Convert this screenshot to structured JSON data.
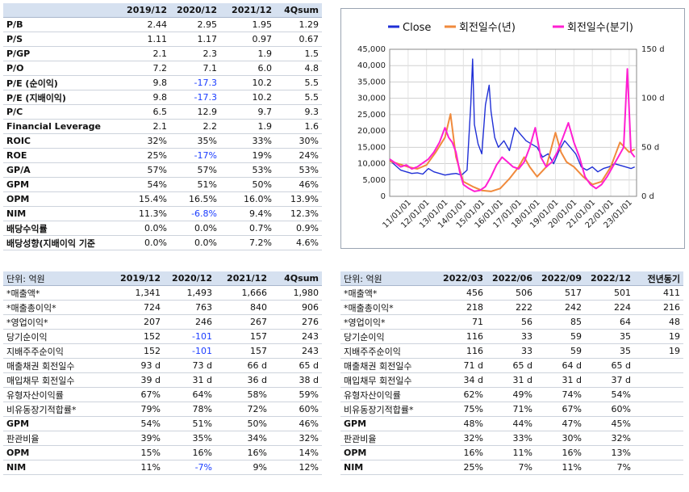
{
  "valuation_table": {
    "headers": [
      "",
      "2019/12",
      "2020/12",
      "2021/12",
      "4Qsum"
    ],
    "rows": [
      {
        "label": "P/B",
        "values": [
          "2.44",
          "2.95",
          "1.95",
          "1.29"
        ],
        "neg": [
          false,
          false,
          false,
          false
        ]
      },
      {
        "label": "P/S",
        "values": [
          "1.11",
          "1.17",
          "0.97",
          "0.67"
        ],
        "neg": [
          false,
          false,
          false,
          false
        ]
      },
      {
        "label": "P/GP",
        "values": [
          "2.1",
          "2.3",
          "1.9",
          "1.5"
        ],
        "neg": [
          false,
          false,
          false,
          false
        ]
      },
      {
        "label": "P/O",
        "values": [
          "7.2",
          "7.1",
          "6.0",
          "4.8"
        ],
        "neg": [
          false,
          false,
          false,
          false
        ]
      },
      {
        "label": "P/E (순이익)",
        "values": [
          "9.8",
          "-17.3",
          "10.2",
          "5.5"
        ],
        "neg": [
          false,
          true,
          false,
          false
        ]
      },
      {
        "label": "P/E (지배이익)",
        "values": [
          "9.8",
          "-17.3",
          "10.2",
          "5.5"
        ],
        "neg": [
          false,
          true,
          false,
          false
        ]
      },
      {
        "label": "P/C",
        "values": [
          "6.5",
          "12.9",
          "9.7",
          "9.3"
        ],
        "neg": [
          false,
          false,
          false,
          false
        ]
      },
      {
        "label": "Financial Leverage",
        "values": [
          "2.1",
          "2.2",
          "1.9",
          "1.6"
        ],
        "neg": [
          false,
          false,
          false,
          false
        ]
      },
      {
        "label": "ROIC",
        "values": [
          "32%",
          "35%",
          "33%",
          "30%"
        ],
        "neg": [
          false,
          false,
          false,
          false
        ]
      },
      {
        "label": "ROE",
        "values": [
          "25%",
          "-17%",
          "19%",
          "24%"
        ],
        "neg": [
          false,
          true,
          false,
          false
        ]
      },
      {
        "label": "GP/A",
        "values": [
          "57%",
          "57%",
          "53%",
          "53%"
        ],
        "neg": [
          false,
          false,
          false,
          false
        ]
      },
      {
        "label": "GPM",
        "values": [
          "54%",
          "51%",
          "50%",
          "46%"
        ],
        "neg": [
          false,
          false,
          false,
          false
        ]
      },
      {
        "label": "OPM",
        "values": [
          "15.4%",
          "16.5%",
          "16.0%",
          "13.9%"
        ],
        "neg": [
          false,
          false,
          false,
          false
        ]
      },
      {
        "label": "NIM",
        "values": [
          "11.3%",
          "-6.8%",
          "9.4%",
          "12.3%"
        ],
        "neg": [
          false,
          true,
          false,
          false
        ]
      },
      {
        "label": "배당수익률",
        "values": [
          "0.0%",
          "0.0%",
          "0.7%",
          "0.9%"
        ],
        "neg": [
          false,
          false,
          false,
          false
        ]
      },
      {
        "label": "배당성향(지배이익 기준",
        "values": [
          "0.0%",
          "0.0%",
          "7.2%",
          "4.6%"
        ],
        "neg": [
          false,
          false,
          false,
          false
        ]
      }
    ]
  },
  "annual_table": {
    "headers": [
      "단위: 억원",
      "2019/12",
      "2020/12",
      "2021/12",
      "4Qsum"
    ],
    "rows": [
      {
        "label": "*매출액*",
        "values": [
          "1,341",
          "1,493",
          "1,666",
          "1,980"
        ],
        "neg": [
          false,
          false,
          false,
          false
        ]
      },
      {
        "label": "*매출총이익*",
        "values": [
          "724",
          "763",
          "840",
          "906"
        ],
        "neg": [
          false,
          false,
          false,
          false
        ]
      },
      {
        "label": "*영업이익*",
        "values": [
          "207",
          "246",
          "267",
          "276"
        ],
        "neg": [
          false,
          false,
          false,
          false
        ]
      },
      {
        "label": "당기순이익",
        "values": [
          "152",
          "-101",
          "157",
          "243"
        ],
        "neg": [
          false,
          true,
          false,
          false
        ]
      },
      {
        "label": "지배주주순이익",
        "values": [
          "152",
          "-101",
          "157",
          "243"
        ],
        "neg": [
          false,
          true,
          false,
          false
        ]
      },
      {
        "label": "매출채권 회전일수",
        "values": [
          "93 d",
          "73 d",
          "66 d",
          "65 d"
        ],
        "neg": [
          false,
          false,
          false,
          false
        ]
      },
      {
        "label": "매입채무 회전일수",
        "values": [
          "39 d",
          "31 d",
          "36 d",
          "38 d"
        ],
        "neg": [
          false,
          false,
          false,
          false
        ]
      },
      {
        "label": "유형자산이익률",
        "values": [
          "67%",
          "64%",
          "58%",
          "59%"
        ],
        "neg": [
          false,
          false,
          false,
          false
        ]
      },
      {
        "label": "비유동장기적합률*",
        "values": [
          "79%",
          "78%",
          "72%",
          "60%"
        ],
        "neg": [
          false,
          false,
          false,
          false
        ]
      },
      {
        "label": "GPM",
        "values": [
          "54%",
          "51%",
          "50%",
          "46%"
        ],
        "neg": [
          false,
          false,
          false,
          false
        ]
      },
      {
        "label": "판관비율",
        "values": [
          "39%",
          "35%",
          "34%",
          "32%"
        ],
        "neg": [
          false,
          false,
          false,
          false
        ]
      },
      {
        "label": "OPM",
        "values": [
          "15%",
          "16%",
          "16%",
          "14%"
        ],
        "neg": [
          false,
          false,
          false,
          false
        ]
      },
      {
        "label": "NIM",
        "values": [
          "11%",
          "-7%",
          "9%",
          "12%"
        ],
        "neg": [
          false,
          true,
          false,
          false
        ]
      }
    ]
  },
  "quarterly_table": {
    "headers": [
      "단위: 억원",
      "2022/03",
      "2022/06",
      "2022/09",
      "2022/12",
      "전년동기"
    ],
    "rows": [
      {
        "label": "*매출액*",
        "values": [
          "456",
          "506",
          "517",
          "501",
          "411"
        ],
        "neg": [
          false,
          false,
          false,
          false,
          false
        ]
      },
      {
        "label": "*매출총이익*",
        "values": [
          "218",
          "222",
          "242",
          "224",
          "216"
        ],
        "neg": [
          false,
          false,
          false,
          false,
          false
        ]
      },
      {
        "label": "*영업이익*",
        "values": [
          "71",
          "56",
          "85",
          "64",
          "48"
        ],
        "neg": [
          false,
          false,
          false,
          false,
          false
        ]
      },
      {
        "label": "당기순이익",
        "values": [
          "116",
          "33",
          "59",
          "35",
          "19"
        ],
        "neg": [
          false,
          false,
          false,
          false,
          false
        ]
      },
      {
        "label": "지배주주순이익",
        "values": [
          "116",
          "33",
          "59",
          "35",
          "19"
        ],
        "neg": [
          false,
          false,
          false,
          false,
          false
        ]
      },
      {
        "label": "매출채권 회전일수",
        "values": [
          "71 d",
          "65 d",
          "64 d",
          "65 d",
          ""
        ],
        "neg": [
          false,
          false,
          false,
          false,
          false
        ]
      },
      {
        "label": "매입채무 회전일수",
        "values": [
          "34 d",
          "31 d",
          "31 d",
          "37 d",
          ""
        ],
        "neg": [
          false,
          false,
          false,
          false,
          false
        ]
      },
      {
        "label": "유형자산이익률",
        "values": [
          "62%",
          "49%",
          "74%",
          "54%",
          ""
        ],
        "neg": [
          false,
          false,
          false,
          false,
          false
        ]
      },
      {
        "label": "비유동장기적합률*",
        "values": [
          "75%",
          "71%",
          "67%",
          "60%",
          ""
        ],
        "neg": [
          false,
          false,
          false,
          false,
          false
        ]
      },
      {
        "label": "GPM",
        "values": [
          "48%",
          "44%",
          "47%",
          "45%",
          ""
        ],
        "neg": [
          false,
          false,
          false,
          false,
          false
        ]
      },
      {
        "label": "판관비율",
        "values": [
          "32%",
          "33%",
          "30%",
          "32%",
          ""
        ],
        "neg": [
          false,
          false,
          false,
          false,
          false
        ]
      },
      {
        "label": "OPM",
        "values": [
          "16%",
          "11%",
          "16%",
          "13%",
          ""
        ],
        "neg": [
          false,
          false,
          false,
          false,
          false
        ]
      },
      {
        "label": "NIM",
        "values": [
          "25%",
          "7%",
          "11%",
          "7%",
          ""
        ],
        "neg": [
          false,
          false,
          false,
          false,
          false
        ]
      }
    ]
  },
  "chart_data": {
    "type": "line",
    "legend": [
      "Close",
      "회전일수(년)",
      "회전일수(분기)"
    ],
    "legend_position": "top",
    "colors": {
      "close": "#1f2fd6",
      "annual": "#f08a3c",
      "quarterly": "#ff1fd2"
    },
    "x_ticks": [
      "11/01/01",
      "12/01/01",
      "13/01/01",
      "14/01/01",
      "15/01/01",
      "16/01/01",
      "17/01/01",
      "18/01/01",
      "19/01/01",
      "20/01/01",
      "21/01/01",
      "22/01/01",
      "23/01/01"
    ],
    "y_left_ticks": [
      "0",
      "5,000",
      "10,000",
      "15,000",
      "20,000",
      "25,000",
      "30,000",
      "35,000",
      "40,000",
      "45,000"
    ],
    "y_left_range": [
      0,
      45000
    ],
    "y_right_ticks": [
      "0 d",
      "50 d",
      "100 d",
      "150 d"
    ],
    "y_right_range": [
      0,
      150
    ],
    "grid": true,
    "series": [
      {
        "name": "Close",
        "axis": "left",
        "x": [
          2010.0,
          2010.3,
          2010.6,
          2010.9,
          2011.2,
          2011.5,
          2011.8,
          2012.1,
          2012.4,
          2012.7,
          2013.0,
          2013.3,
          2013.6,
          2013.9,
          2014.2,
          2014.4,
          2014.5,
          2014.6,
          2014.8,
          2015.0,
          2015.2,
          2015.4,
          2015.5,
          2015.7,
          2015.9,
          2016.2,
          2016.5,
          2016.8,
          2017.1,
          2017.4,
          2017.7,
          2018.0,
          2018.3,
          2018.6,
          2018.9,
          2019.2,
          2019.5,
          2019.8,
          2020.1,
          2020.4,
          2020.7,
          2021.0,
          2021.3,
          2021.6,
          2021.9,
          2022.2,
          2022.5,
          2022.8,
          2023.1,
          2023.3
        ],
        "y": [
          11000,
          9500,
          8000,
          7500,
          7000,
          7200,
          6800,
          8500,
          7500,
          7000,
          6500,
          6800,
          7000,
          6500,
          8000,
          28000,
          42000,
          22000,
          16000,
          13000,
          28000,
          34000,
          26000,
          18000,
          15000,
          17000,
          14000,
          21000,
          19000,
          17000,
          16000,
          15000,
          12000,
          13000,
          10000,
          14000,
          17000,
          15000,
          13000,
          9000,
          8000,
          9000,
          7500,
          8500,
          9000,
          10000,
          9500,
          9000,
          8500,
          9000
        ]
      },
      {
        "name": "회전일수(년)",
        "axis": "right",
        "x": [
          2010.0,
          2010.5,
          2011.0,
          2011.5,
          2012.0,
          2012.5,
          2013.0,
          2013.3,
          2013.6,
          2014.0,
          2014.5,
          2015.0,
          2015.5,
          2016.0,
          2016.5,
          2017.0,
          2017.3,
          2017.6,
          2018.0,
          2018.5,
          2019.0,
          2019.3,
          2019.6,
          2020.0,
          2020.5,
          2021.0,
          2021.5,
          2022.0,
          2022.5,
          2023.0,
          2023.3
        ],
        "y": [
          36,
          33,
          30,
          28,
          32,
          45,
          60,
          84,
          40,
          15,
          10,
          6,
          5,
          8,
          18,
          30,
          40,
          30,
          20,
          30,
          65,
          45,
          35,
          30,
          20,
          12,
          15,
          30,
          55,
          45,
          48
        ]
      },
      {
        "name": "회전일수(분기)",
        "axis": "right",
        "x": [
          2010.0,
          2010.3,
          2010.6,
          2010.9,
          2011.2,
          2011.5,
          2011.8,
          2012.1,
          2012.4,
          2012.7,
          2013.0,
          2013.2,
          2013.4,
          2013.6,
          2013.8,
          2014.0,
          2014.3,
          2014.6,
          2014.9,
          2015.2,
          2015.5,
          2015.8,
          2016.1,
          2016.4,
          2016.7,
          2017.0,
          2017.3,
          2017.6,
          2017.9,
          2018.2,
          2018.5,
          2018.8,
          2019.1,
          2019.4,
          2019.7,
          2020.0,
          2020.3,
          2020.6,
          2020.9,
          2021.2,
          2021.5,
          2021.8,
          2022.1,
          2022.4,
          2022.7,
          2022.9,
          2023.1,
          2023.3
        ],
        "y": [
          38,
          34,
          30,
          32,
          28,
          30,
          34,
          38,
          45,
          55,
          70,
          60,
          55,
          45,
          25,
          12,
          8,
          5,
          6,
          10,
          20,
          32,
          40,
          35,
          30,
          28,
          35,
          50,
          70,
          40,
          30,
          35,
          45,
          60,
          75,
          55,
          40,
          20,
          12,
          8,
          12,
          20,
          30,
          40,
          50,
          130,
          45,
          40
        ]
      }
    ]
  }
}
